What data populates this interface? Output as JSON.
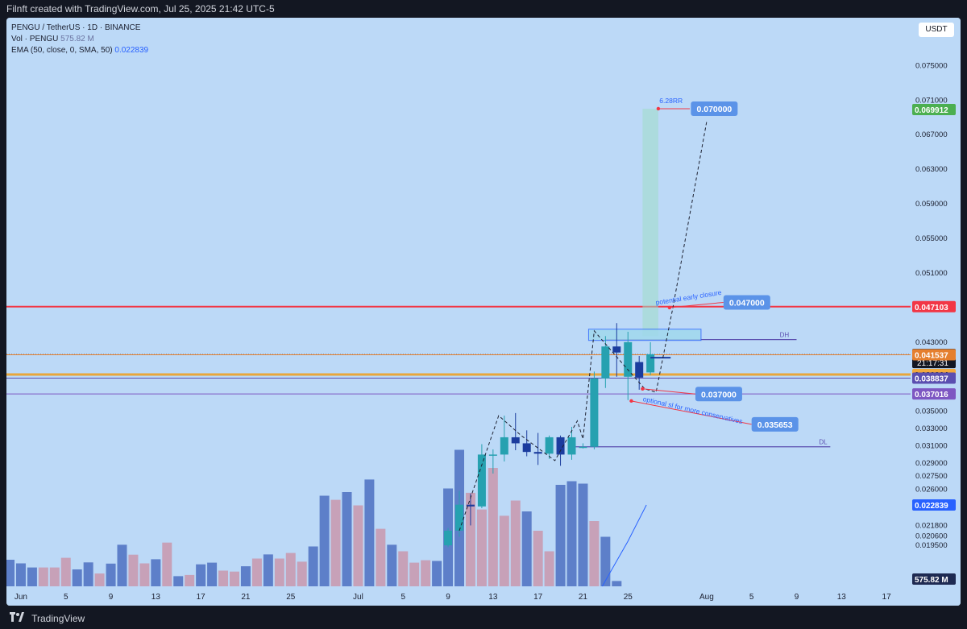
{
  "header": {
    "attribution": "Filnft created with TradingView.com, Jul 25, 2025 21:42 UTC-5"
  },
  "legend": {
    "symbol_line": "PENGU / TetherUS · 1D · BINANCE",
    "vol_label": "Vol · PENGU",
    "vol_value": "575.82 M",
    "ema_label": "EMA (50, close, 0, SMA, 50)",
    "ema_value": "0.022839"
  },
  "currency": "USDT",
  "footer": {
    "brand": "TradingView"
  },
  "colors": {
    "up": "#26a1b0",
    "down": "#1b3c9e",
    "vol_up": "#5d7fc9",
    "vol_down": "#c7a1b8",
    "resistance": "#f23645",
    "orange": "#e8a63c",
    "purple": "#5b4fb0",
    "target": "#5b93e8"
  },
  "chart_data": {
    "type": "candlestick",
    "ylim": [
      0.0183,
      0.0795
    ],
    "y_ticks": [
      "0.075000",
      "0.071000",
      "0.067000",
      "0.063000",
      "0.059000",
      "0.055000",
      "0.051000",
      "0.047000",
      "0.043000",
      "0.035000",
      "0.033000",
      "0.031000",
      "0.029000",
      "0.027500",
      "0.026000",
      "0.024500",
      "0.021800",
      "0.020600",
      "0.019500"
    ],
    "x_ticks": [
      "Jun",
      "5",
      "9",
      "13",
      "17",
      "21",
      "25",
      "Jul",
      "5",
      "9",
      "13",
      "17",
      "21",
      "25",
      "Aug",
      "5",
      "9",
      "13",
      "17"
    ],
    "candles": [
      {
        "date": "Jul 9",
        "o": 0.0195,
        "h": 0.0215,
        "l": 0.0193,
        "c": 0.0212
      },
      {
        "date": "Jul 10",
        "o": 0.0212,
        "h": 0.0258,
        "l": 0.0205,
        "c": 0.0242
      },
      {
        "date": "Jul 11",
        "o": 0.0242,
        "h": 0.0255,
        "l": 0.0218,
        "c": 0.024
      },
      {
        "date": "Jul 12",
        "o": 0.024,
        "h": 0.0312,
        "l": 0.0238,
        "c": 0.03
      },
      {
        "date": "Jul 13",
        "o": 0.0299,
        "h": 0.0306,
        "l": 0.0278,
        "c": 0.03
      },
      {
        "date": "Jul 14",
        "o": 0.03,
        "h": 0.0345,
        "l": 0.0292,
        "c": 0.032
      },
      {
        "date": "Jul 15",
        "o": 0.032,
        "h": 0.0348,
        "l": 0.0305,
        "c": 0.0313
      },
      {
        "date": "Jul 16",
        "o": 0.0313,
        "h": 0.0328,
        "l": 0.0298,
        "c": 0.0303
      },
      {
        "date": "Jul 17",
        "o": 0.0303,
        "h": 0.0325,
        "l": 0.0288,
        "c": 0.0301
      },
      {
        "date": "Jul 18",
        "o": 0.0301,
        "h": 0.0322,
        "l": 0.0295,
        "c": 0.032
      },
      {
        "date": "Jul 19",
        "o": 0.032,
        "h": 0.0322,
        "l": 0.0287,
        "c": 0.03
      },
      {
        "date": "Jul 20",
        "o": 0.03,
        "h": 0.0332,
        "l": 0.0294,
        "c": 0.032
      },
      {
        "date": "Jul 21",
        "o": 0.0309,
        "h": 0.0313,
        "l": 0.0307,
        "c": 0.0309
      },
      {
        "date": "Jul 22",
        "o": 0.0309,
        "h": 0.0396,
        "l": 0.0306,
        "c": 0.0388
      },
      {
        "date": "Jul 23",
        "o": 0.0388,
        "h": 0.0437,
        "l": 0.0377,
        "c": 0.0425
      },
      {
        "date": "Jul 24",
        "o": 0.0425,
        "h": 0.0452,
        "l": 0.039,
        "c": 0.0418
      },
      {
        "date": "Jul 25",
        "o": 0.039,
        "h": 0.0442,
        "l": 0.0363,
        "c": 0.043
      },
      {
        "date": "Jul 26",
        "o": 0.0407,
        "h": 0.0414,
        "l": 0.0375,
        "c": 0.0389
      },
      {
        "date": "Jul 27",
        "o": 0.0395,
        "h": 0.043,
        "l": 0.0392,
        "c": 0.0416
      }
    ],
    "volume": [
      {
        "date": "May 31",
        "v": 1.1,
        "up": true
      },
      {
        "date": "Jun 1",
        "v": 0.95,
        "up": true
      },
      {
        "date": "Jun 2",
        "v": 0.78,
        "up": true
      },
      {
        "date": "Jun 3",
        "v": 0.78,
        "up": false
      },
      {
        "date": "Jun 4",
        "v": 0.78,
        "up": false
      },
      {
        "date": "Jun 5",
        "v": 1.18,
        "up": false
      },
      {
        "date": "Jun 6",
        "v": 0.7,
        "up": true
      },
      {
        "date": "Jun 7",
        "v": 0.99,
        "up": true
      },
      {
        "date": "Jun 8",
        "v": 0.53,
        "up": false
      },
      {
        "date": "Jun 9",
        "v": 0.94,
        "up": true
      },
      {
        "date": "Jun 10",
        "v": 1.72,
        "up": true
      },
      {
        "date": "Jun 11",
        "v": 1.31,
        "up": false
      },
      {
        "date": "Jun 12",
        "v": 0.95,
        "up": false
      },
      {
        "date": "Jun 13",
        "v": 1.12,
        "up": true
      },
      {
        "date": "Jun 14",
        "v": 1.81,
        "up": false
      },
      {
        "date": "Jun 15",
        "v": 0.42,
        "up": true
      },
      {
        "date": "Jun 16",
        "v": 0.47,
        "up": false
      },
      {
        "date": "Jun 17",
        "v": 0.91,
        "up": true
      },
      {
        "date": "Jun 18",
        "v": 0.98,
        "up": true
      },
      {
        "date": "Jun 19",
        "v": 0.65,
        "up": false
      },
      {
        "date": "Jun 20",
        "v": 0.61,
        "up": false
      },
      {
        "date": "Jun 21",
        "v": 0.83,
        "up": true
      },
      {
        "date": "Jun 22",
        "v": 1.15,
        "up": false
      },
      {
        "date": "Jun 23",
        "v": 1.32,
        "up": true
      },
      {
        "date": "Jun 24",
        "v": 1.15,
        "up": false
      },
      {
        "date": "Jun 25",
        "v": 1.38,
        "up": false
      },
      {
        "date": "Jun 26",
        "v": 1.02,
        "up": false
      },
      {
        "date": "Jun 27",
        "v": 1.65,
        "up": true
      },
      {
        "date": "Jun 28",
        "v": 3.75,
        "up": true
      },
      {
        "date": "Jun 29",
        "v": 3.58,
        "up": false
      },
      {
        "date": "Jun 30",
        "v": 3.9,
        "up": true
      },
      {
        "date": "Jul 1",
        "v": 3.35,
        "up": false
      },
      {
        "date": "Jul 2",
        "v": 4.42,
        "up": true
      },
      {
        "date": "Jul 3",
        "v": 2.38,
        "up": false
      },
      {
        "date": "Jul 4",
        "v": 1.72,
        "up": true
      },
      {
        "date": "Jul 5",
        "v": 1.45,
        "up": false
      },
      {
        "date": "Jul 6",
        "v": 0.98,
        "up": false
      },
      {
        "date": "Jul 7",
        "v": 1.08,
        "up": false
      },
      {
        "date": "Jul 8",
        "v": 1.05,
        "up": true
      },
      {
        "date": "Jul 9",
        "v": 4.05,
        "up": true
      },
      {
        "date": "Jul 10",
        "v": 5.65,
        "up": true
      },
      {
        "date": "Jul 11",
        "v": 3.87,
        "up": false
      },
      {
        "date": "Jul 12",
        "v": 3.18,
        "up": false
      },
      {
        "date": "Jul 13",
        "v": 4.9,
        "up": false
      },
      {
        "date": "Jul 14",
        "v": 2.92,
        "up": false
      },
      {
        "date": "Jul 15",
        "v": 3.55,
        "up": false
      },
      {
        "date": "Jul 16",
        "v": 3.1,
        "up": true
      },
      {
        "date": "Jul 17",
        "v": 2.3,
        "up": false
      },
      {
        "date": "Jul 18",
        "v": 1.45,
        "up": false
      },
      {
        "date": "Jul 19",
        "v": 4.2,
        "up": true
      },
      {
        "date": "Jul 20",
        "v": 4.35,
        "up": true
      },
      {
        "date": "Jul 21",
        "v": 4.25,
        "up": true
      },
      {
        "date": "Jul 22",
        "v": 2.7,
        "up": false
      },
      {
        "date": "Jul 23",
        "v": 2.05,
        "up": true
      },
      {
        "date": "Jul 24",
        "v": 0.22,
        "up": true
      }
    ],
    "price_labels": [
      {
        "value": "0.069912",
        "price": 0.06991,
        "bg": "#4caf50",
        "fg": "#ffffff"
      },
      {
        "value": "0.047103",
        "price": 0.047103,
        "bg": "#f23645",
        "fg": "#ffffff"
      },
      {
        "value": "0.041581",
        "price": 0.041581,
        "bg": "#131722",
        "fg": "#ffffff",
        "sub": "21:17:31"
      },
      {
        "value": "0.041537",
        "price": 0.041537,
        "bg": "#e57f2e",
        "fg": "#ffffff"
      },
      {
        "value": "0.039264",
        "price": 0.039264,
        "bg": "#f2a93b",
        "fg": "#131722"
      },
      {
        "value": "0.038837",
        "price": 0.038837,
        "bg": "#5b4fb0",
        "fg": "#ffffff"
      },
      {
        "value": "0.037016",
        "price": 0.037016,
        "bg": "#7e57c2",
        "fg": "#ffffff"
      },
      {
        "value": "0.022839",
        "price": 0.022839,
        "bg": "#2962ff",
        "fg": "#ffffff"
      },
      {
        "value": "575.82 M",
        "price": 0.0183,
        "bg": "#1e2a52",
        "fg": "#ffffff"
      }
    ],
    "annotations": {
      "rr": "6.28RR",
      "target": "0.070000",
      "early_exit_note": "potential early closure",
      "early_exit": "0.047000",
      "stop": "0.037000",
      "optional_sl_note": "optional sl for more conservatives",
      "optional_sl": "0.035653",
      "dh": "DH",
      "dl": "DL"
    }
  }
}
